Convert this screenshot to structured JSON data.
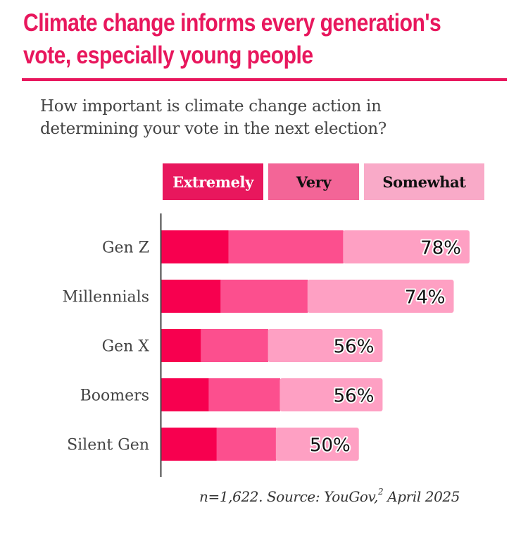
{
  "header": {
    "title_line1": "Climate change informs every generation's",
    "title_line2": "vote, especially young people",
    "subtitle_line1": "How important is climate change action in",
    "subtitle_line2": "determining your vote in the next election?"
  },
  "legend": [
    {
      "label": "Extremely",
      "color": "#e8175d",
      "text_color": "#ffffff"
    },
    {
      "label": "Very",
      "color": "#f36597",
      "text_color": "#111111"
    },
    {
      "label": "Somewhat",
      "color": "#f9aac8",
      "text_color": "#111111"
    }
  ],
  "footer": {
    "source_prefix": "n=1,622. Source: YouGov,",
    "source_sup": "2",
    "source_suffix": " April 2025"
  },
  "chart_data": {
    "type": "bar",
    "orientation": "horizontal",
    "stacked": true,
    "title": "Climate change informs every generation's vote, especially young people",
    "subtitle": "How important is climate change action in determining your vote in the next election?",
    "xlabel": "",
    "ylabel": "",
    "xlim": [
      0,
      100
    ],
    "grid": false,
    "legend_position": "top",
    "categories": [
      "Gen Z",
      "Millennials",
      "Gen X",
      "Boomers",
      "Silent Gen"
    ],
    "series": [
      {
        "name": "Extremely",
        "color": "#f7004f",
        "values": [
          17,
          15,
          10,
          12,
          14
        ]
      },
      {
        "name": "Very",
        "color": "#fc4f8e",
        "values": [
          29,
          22,
          17,
          18,
          15
        ]
      },
      {
        "name": "Somewhat",
        "color": "#fea0c3",
        "values": [
          32,
          37,
          29,
          26,
          21
        ]
      }
    ],
    "totals": [
      78,
      74,
      56,
      56,
      50
    ],
    "total_labels": [
      "78%",
      "74%",
      "56%",
      "56%",
      "50%"
    ],
    "annotations": [
      "n=1,622. Source: YouGov, April 2025"
    ]
  }
}
